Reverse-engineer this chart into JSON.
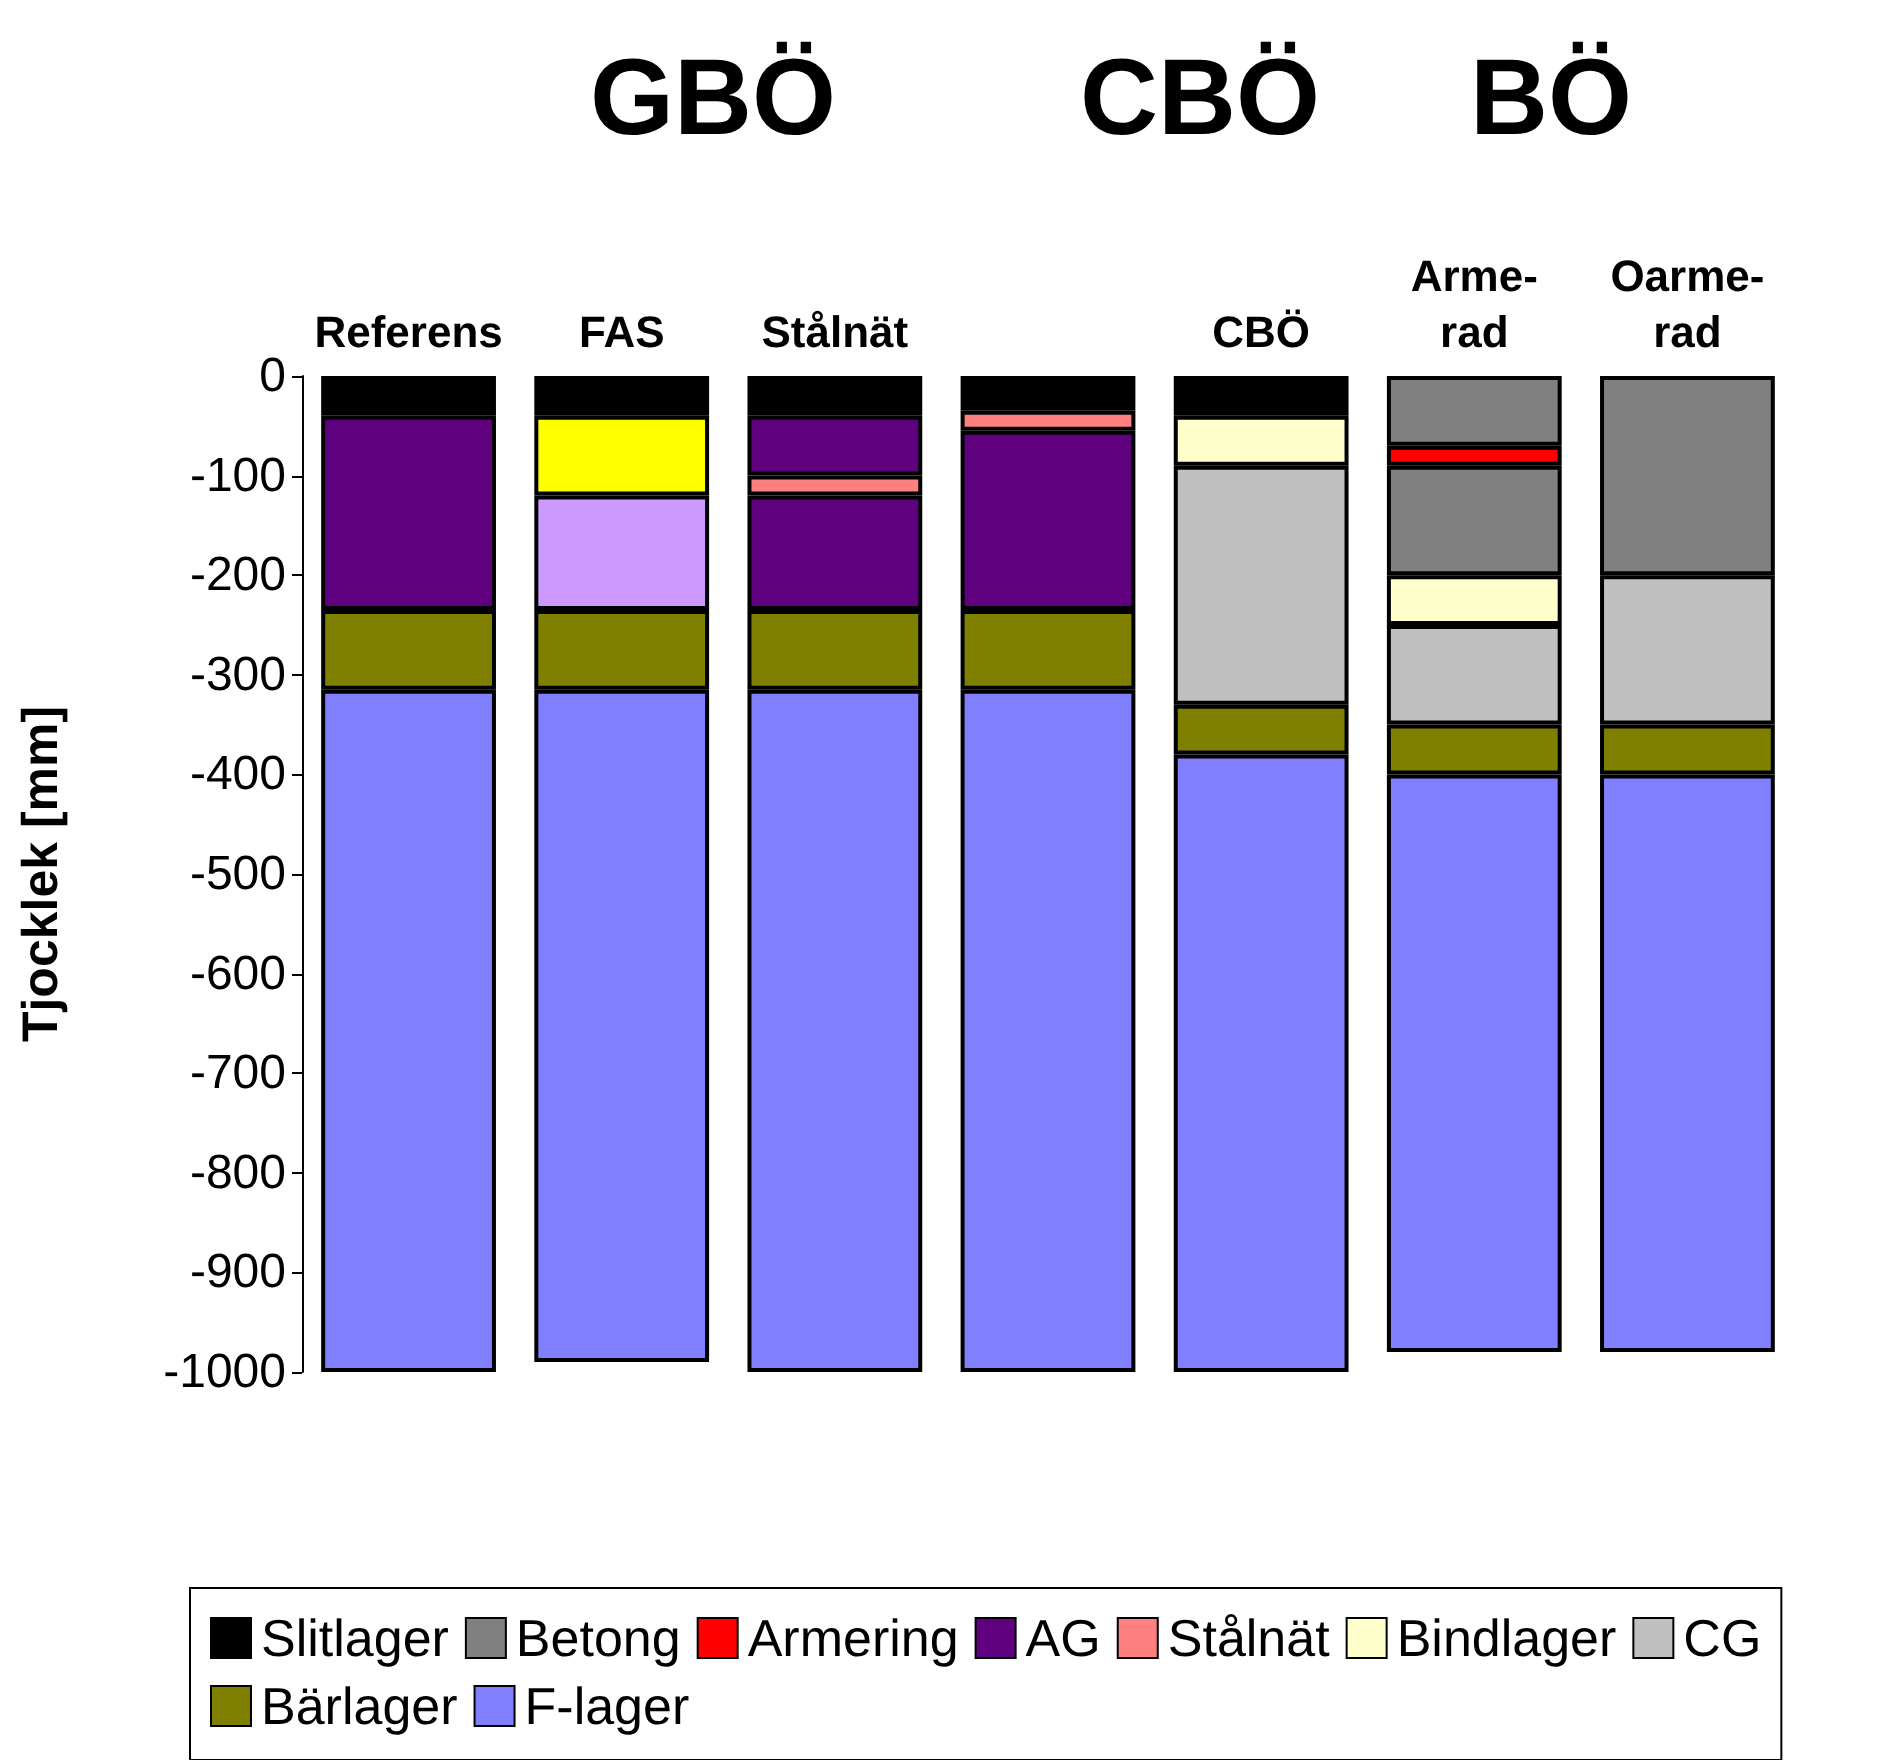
{
  "chart_data": {
    "type": "bar",
    "stacked": true,
    "ylabel": "Tjocklek [mm]",
    "annotations": [
      "GBÖ",
      "CBÖ",
      "BÖ"
    ],
    "categories": [
      "Referens",
      "FAS",
      "Stålnät",
      null,
      "CBÖ",
      "Arme-\nrad",
      "Oarme-\nrad"
    ],
    "ylim": [
      -1000,
      0
    ],
    "yticks": [
      -1000,
      -900,
      -800,
      -700,
      -600,
      -500,
      -400,
      -300,
      -200,
      -100,
      0
    ],
    "grid": false,
    "legend": "bottom",
    "series": [
      {
        "name": "Slitlager",
        "color": "#000000",
        "values": [
          -40,
          -40,
          -40,
          -35,
          -40,
          null,
          null
        ]
      },
      {
        "name": "Betong",
        "color": "#808080",
        "values": [
          null,
          null,
          null,
          null,
          null,
          -70,
          -200
        ]
      },
      {
        "name": "Armering",
        "color": "#ff0000",
        "values": [
          null,
          null,
          null,
          null,
          null,
          -20,
          null
        ]
      },
      {
        "name": "AG",
        "color": "#5f007f",
        "values": [
          -195,
          null,
          -60,
          null,
          null,
          null,
          null
        ]
      },
      {
        "name": "Stålnät",
        "color": "#ff8080",
        "values": [
          null,
          null,
          -20,
          -20,
          null,
          null,
          null
        ]
      },
      {
        "color": "#5f007f",
        "values": [
          null,
          null,
          -115,
          -180,
          null,
          null,
          null
        ]
      },
      {
        "color": "#808080",
        "values": [
          null,
          null,
          null,
          null,
          null,
          -110,
          null
        ]
      },
      {
        "color": "#ffff00",
        "values": [
          null,
          -80,
          null,
          null,
          null,
          null,
          null
        ]
      },
      {
        "color": "#cc99ff",
        "values": [
          null,
          -115,
          null,
          null,
          null,
          null,
          null
        ]
      },
      {
        "name": "Bindlager",
        "color": "#ffffcc",
        "values": [
          null,
          null,
          null,
          null,
          -50,
          -50,
          null
        ]
      },
      {
        "name": "CG",
        "color": "#c0c0c0",
        "values": [
          null,
          null,
          null,
          null,
          -240,
          -100,
          -150
        ]
      },
      {
        "name": "Bärlager",
        "color": "#808000",
        "values": [
          -80,
          -80,
          -80,
          -80,
          -50,
          -50,
          -50
        ]
      },
      {
        "name": "F-lager",
        "color": "#8080ff",
        "values": [
          -685,
          -675,
          -685,
          -685,
          -620,
          -580,
          -580
        ]
      }
    ]
  }
}
